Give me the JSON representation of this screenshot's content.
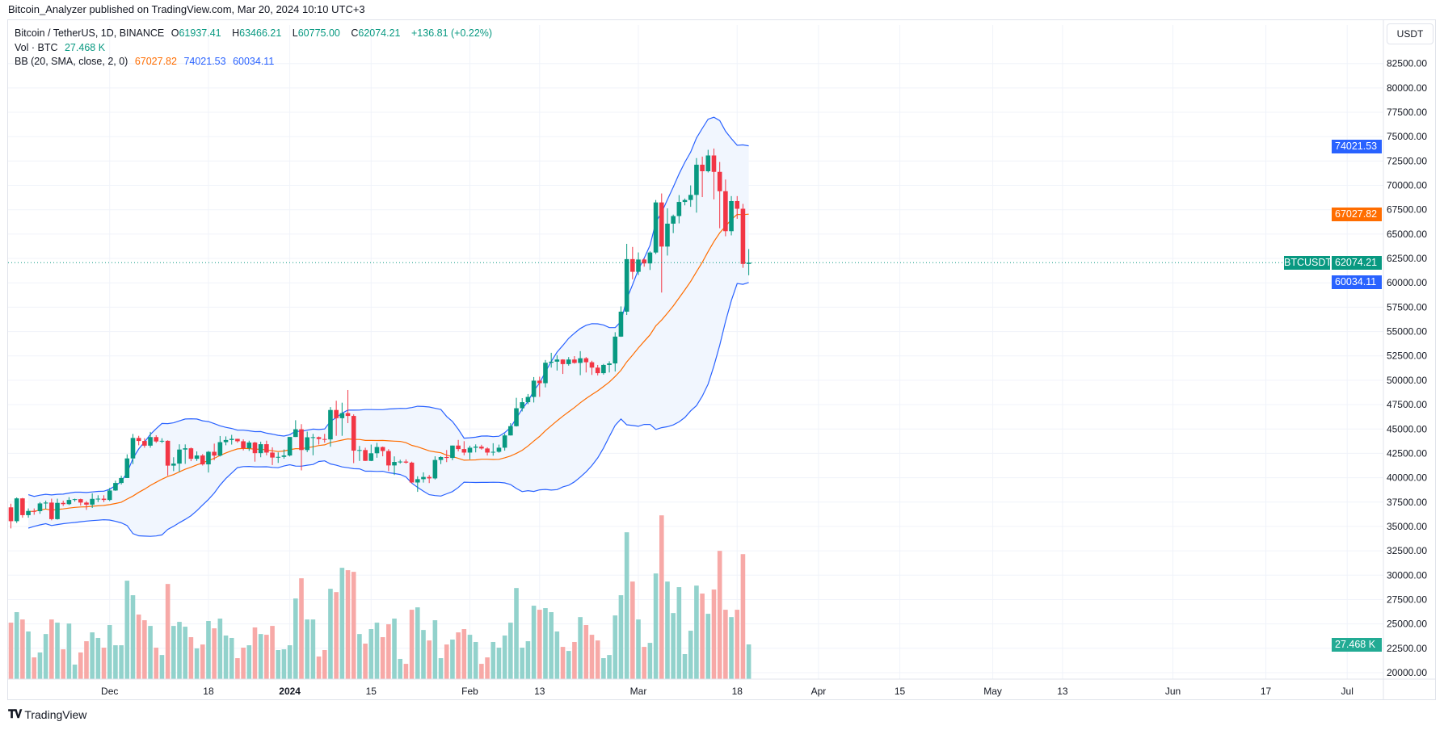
{
  "header": {
    "published": "Bitcoin_Analyzer published on TradingView.com, Mar 20, 2024 10:10 UTC+3"
  },
  "legend": {
    "symbol": "Bitcoin / TetherUS, 1D, BINANCE",
    "o_label": "O",
    "o": "61937.41",
    "h_label": "H",
    "h": "63466.21",
    "l_label": "L",
    "l": "60775.00",
    "c_label": "C",
    "c": "62074.21",
    "change": "+136.81 (+0.22%)",
    "vol_label": "Vol · BTC",
    "vol": "27.468 K",
    "bb_label": "BB (20, SMA, close, 2, 0)",
    "bb_basis": "67027.82",
    "bb_upper": "74021.53",
    "bb_lower": "60034.11"
  },
  "price_axis": {
    "currency_button": "USDT"
  },
  "badges": {
    "upper": {
      "text": "74021.53",
      "value": 74021.53,
      "color": "#2962ff"
    },
    "basis": {
      "text": "67027.82",
      "value": 67027.82,
      "color": "#ff6d00"
    },
    "last": {
      "symbol": "BTCUSDT",
      "text": "62074.21",
      "value": 62074.21,
      "color": "#089981"
    },
    "lower": {
      "text": "60034.11",
      "value": 60034.11,
      "color": "#2962ff"
    },
    "volume": {
      "text": "27.468 K",
      "value": 27.468,
      "color": "#22ab94"
    }
  },
  "footer": {
    "brand": "TradingView"
  },
  "chart_data": {
    "type": "candlestick",
    "title": "Bitcoin / TetherUS, 1D, BINANCE",
    "ylim": [
      20000,
      82500
    ],
    "y_ticks": [
      "82500.00",
      "80000.00",
      "77500.00",
      "75000.00",
      "72500.00",
      "70000.00",
      "67500.00",
      "65000.00",
      "62500.00",
      "60000.00",
      "57500.00",
      "55000.00",
      "52500.00",
      "50000.00",
      "47500.00",
      "45000.00",
      "42500.00",
      "40000.00",
      "37500.00",
      "35000.00",
      "32500.00",
      "30000.00",
      "27500.00",
      "25000.00",
      "22500.00",
      "20000.00"
    ],
    "x_ticks": [
      {
        "label": "Dec",
        "date": "2023-12-01"
      },
      {
        "label": "18",
        "date": "2023-12-18"
      },
      {
        "label": "2024",
        "date": "2024-01-01"
      },
      {
        "label": "15",
        "date": "2024-01-15"
      },
      {
        "label": "Feb",
        "date": "2024-02-01"
      },
      {
        "label": "13",
        "date": "2024-02-13"
      },
      {
        "label": "Mar",
        "date": "2024-03-01"
      },
      {
        "label": "18",
        "date": "2024-03-18"
      },
      {
        "label": "Apr",
        "date": "2024-04-01"
      },
      {
        "label": "15",
        "date": "2024-04-15"
      },
      {
        "label": "May",
        "date": "2024-05-01"
      },
      {
        "label": "13",
        "date": "2024-05-13"
      },
      {
        "label": "Jun",
        "date": "2024-06-01"
      },
      {
        "label": "17",
        "date": "2024-06-17"
      },
      {
        "label": "Jul",
        "date": "2024-07-01"
      }
    ],
    "colors": {
      "up": "#089981",
      "down": "#f23645",
      "vol_up": "#92d2cc",
      "vol_down": "#f7a9a7",
      "bb_basis": "#ff6d00",
      "bb_band": "#2962ff",
      "bb_fill": "#f1f6fe"
    },
    "bollinger": {
      "period": 20,
      "mult": 2
    },
    "volume_unit": "K BTC",
    "columns": [
      "date",
      "open",
      "high",
      "low",
      "close",
      "volume"
    ],
    "candles": [
      [
        "2023-11-14",
        36960,
        37330,
        34800,
        35540,
        44.7
      ],
      [
        "2023-11-15",
        35540,
        37980,
        35360,
        37880,
        53.0
      ],
      [
        "2023-11-16",
        37880,
        37930,
        35900,
        36160,
        47.2
      ],
      [
        "2023-11-17",
        36160,
        36850,
        35900,
        36590,
        37.7
      ],
      [
        "2023-11-18",
        36590,
        36850,
        36200,
        36570,
        17.2
      ],
      [
        "2023-11-19",
        36570,
        37500,
        36300,
        37360,
        21.1
      ],
      [
        "2023-11-20",
        37360,
        37650,
        36800,
        37450,
        35.7
      ],
      [
        "2023-11-21",
        37450,
        37850,
        35630,
        35750,
        47.2
      ],
      [
        "2023-11-22",
        35750,
        37850,
        35700,
        37420,
        44.7
      ],
      [
        "2023-11-23",
        37420,
        37650,
        37100,
        37290,
        23.6
      ],
      [
        "2023-11-24",
        37290,
        38000,
        37200,
        37720,
        44.0
      ],
      [
        "2023-11-25",
        37720,
        37850,
        37550,
        37800,
        11.5
      ],
      [
        "2023-11-26",
        37800,
        37850,
        37150,
        37450,
        21.1
      ],
      [
        "2023-11-27",
        37450,
        37600,
        36700,
        37240,
        30.0
      ],
      [
        "2023-11-28",
        37240,
        38400,
        36900,
        37830,
        37.0
      ],
      [
        "2023-11-29",
        37830,
        38200,
        37500,
        37850,
        32.6
      ],
      [
        "2023-11-30",
        37850,
        38200,
        37500,
        37720,
        24.9
      ],
      [
        "2023-12-01",
        37720,
        38950,
        37600,
        38690,
        42.8
      ],
      [
        "2023-12-02",
        38690,
        39700,
        38650,
        39460,
        26.8
      ],
      [
        "2023-12-03",
        39460,
        40200,
        39300,
        39970,
        26.8
      ],
      [
        "2023-12-04",
        39970,
        42400,
        39970,
        41980,
        77.9
      ],
      [
        "2023-12-05",
        41980,
        44490,
        41400,
        44080,
        66.4
      ],
      [
        "2023-12-06",
        44080,
        44300,
        43330,
        43770,
        51.1
      ],
      [
        "2023-12-07",
        43770,
        44050,
        43080,
        43290,
        46.6
      ],
      [
        "2023-12-08",
        43290,
        44700,
        43080,
        44170,
        42.1
      ],
      [
        "2023-12-09",
        44170,
        44360,
        43580,
        43720,
        24.9
      ],
      [
        "2023-12-10",
        43720,
        44050,
        43560,
        43790,
        19.1
      ],
      [
        "2023-12-11",
        43790,
        43840,
        40220,
        41240,
        75.3
      ],
      [
        "2023-12-12",
        41240,
        42100,
        40680,
        41450,
        42.1
      ],
      [
        "2023-12-13",
        41450,
        43430,
        40600,
        42890,
        45.3
      ],
      [
        "2023-12-14",
        42890,
        43420,
        41420,
        43020,
        41.5
      ],
      [
        "2023-12-15",
        43020,
        43100,
        41700,
        41940,
        33.2
      ],
      [
        "2023-12-16",
        41940,
        42700,
        41720,
        42280,
        24.3
      ],
      [
        "2023-12-17",
        42280,
        42430,
        41250,
        41370,
        27.4
      ],
      [
        "2023-12-18",
        41370,
        42750,
        40530,
        42660,
        46.0
      ],
      [
        "2023-12-19",
        42660,
        43500,
        41800,
        42270,
        40.2
      ],
      [
        "2023-12-20",
        42270,
        44280,
        42180,
        43650,
        47.9
      ],
      [
        "2023-12-21",
        43650,
        44240,
        43330,
        43870,
        34.5
      ],
      [
        "2023-12-22",
        43870,
        44400,
        43400,
        43990,
        32.6
      ],
      [
        "2023-12-23",
        43990,
        44000,
        43590,
        43740,
        16.6
      ],
      [
        "2023-12-24",
        43740,
        43940,
        42800,
        43020,
        24.9
      ],
      [
        "2023-12-25",
        43020,
        43800,
        42750,
        43610,
        26.8
      ],
      [
        "2023-12-26",
        43610,
        43680,
        41650,
        42520,
        40.9
      ],
      [
        "2023-12-27",
        42520,
        43700,
        42100,
        43440,
        35.7
      ],
      [
        "2023-12-28",
        43440,
        43800,
        42300,
        42580,
        35.1
      ],
      [
        "2023-12-29",
        42580,
        43120,
        41300,
        42070,
        42.1
      ],
      [
        "2023-12-30",
        42070,
        42600,
        41520,
        42140,
        23.0
      ],
      [
        "2023-12-31",
        42140,
        42900,
        41950,
        42280,
        23.6
      ],
      [
        "2024-01-01",
        42280,
        44180,
        42180,
        44180,
        26.8
      ],
      [
        "2024-01-02",
        44180,
        45900,
        44180,
        44970,
        63.8
      ],
      [
        "2024-01-03",
        44970,
        45500,
        40750,
        42840,
        79.8
      ],
      [
        "2024-01-04",
        42840,
        44730,
        42630,
        44150,
        47.2
      ],
      [
        "2024-01-05",
        44150,
        44500,
        42300,
        44160,
        47.2
      ],
      [
        "2024-01-06",
        44160,
        44230,
        43400,
        43970,
        17.9
      ],
      [
        "2024-01-07",
        43970,
        44500,
        43600,
        43930,
        23.0
      ],
      [
        "2024-01-08",
        43930,
        47250,
        43180,
        46950,
        71.5
      ],
      [
        "2024-01-09",
        46950,
        47900,
        44300,
        46110,
        68.9
      ],
      [
        "2024-01-10",
        46110,
        47700,
        44300,
        46630,
        88.1
      ],
      [
        "2024-01-11",
        46630,
        49000,
        45600,
        46340,
        86.2
      ],
      [
        "2024-01-12",
        46340,
        46500,
        41500,
        42780,
        84.9
      ],
      [
        "2024-01-13",
        42780,
        43260,
        41720,
        42840,
        35.7
      ],
      [
        "2024-01-14",
        42840,
        43080,
        41720,
        41730,
        28.1
      ],
      [
        "2024-01-15",
        41730,
        43400,
        41700,
        42510,
        39.6
      ],
      [
        "2024-01-16",
        42510,
        43580,
        42050,
        43150,
        44.7
      ],
      [
        "2024-01-17",
        43150,
        43200,
        42200,
        42740,
        33.2
      ],
      [
        "2024-01-18",
        42740,
        42930,
        40680,
        41260,
        43.4
      ],
      [
        "2024-01-19",
        41260,
        42190,
        40280,
        41620,
        47.9
      ],
      [
        "2024-01-20",
        41620,
        41850,
        41450,
        41660,
        16.0
      ],
      [
        "2024-01-21",
        41660,
        41880,
        41450,
        41550,
        12.1
      ],
      [
        "2024-01-22",
        41550,
        41650,
        39430,
        39510,
        54.9
      ],
      [
        "2024-01-23",
        39510,
        40150,
        38550,
        39850,
        56.8
      ],
      [
        "2024-01-24",
        39850,
        40550,
        39500,
        40080,
        38.9
      ],
      [
        "2024-01-25",
        40080,
        40280,
        39450,
        39930,
        30.6
      ],
      [
        "2024-01-26",
        39930,
        42200,
        39820,
        41820,
        46.6
      ],
      [
        "2024-01-27",
        41820,
        42200,
        41400,
        42120,
        16.6
      ],
      [
        "2024-01-28",
        42120,
        42840,
        41600,
        42030,
        27.4
      ],
      [
        "2024-01-29",
        42030,
        43300,
        41800,
        43300,
        31.3
      ],
      [
        "2024-01-30",
        43300,
        43880,
        42700,
        42940,
        37.0
      ],
      [
        "2024-01-31",
        42940,
        43750,
        42300,
        42580,
        39.6
      ],
      [
        "2024-02-01",
        42580,
        43290,
        41880,
        43080,
        35.1
      ],
      [
        "2024-02-02",
        43080,
        43420,
        42600,
        43190,
        29.4
      ],
      [
        "2024-02-03",
        43190,
        43380,
        42880,
        43000,
        12.1
      ],
      [
        "2024-02-04",
        43000,
        43120,
        42280,
        42580,
        17.2
      ],
      [
        "2024-02-05",
        42580,
        43540,
        42260,
        42660,
        29.4
      ],
      [
        "2024-02-06",
        42660,
        43400,
        42570,
        43080,
        24.9
      ],
      [
        "2024-02-07",
        43080,
        44530,
        42780,
        44340,
        34.5
      ],
      [
        "2024-02-08",
        44340,
        45600,
        44330,
        45290,
        44.7
      ],
      [
        "2024-02-09",
        45290,
        48200,
        45250,
        47130,
        72.1
      ],
      [
        "2024-02-10",
        47130,
        48170,
        46800,
        47750,
        24.9
      ],
      [
        "2024-02-11",
        47750,
        48590,
        47540,
        48290,
        30.0
      ],
      [
        "2024-02-12",
        48290,
        50330,
        47720,
        49960,
        58.1
      ],
      [
        "2024-02-13",
        49960,
        50370,
        48300,
        49700,
        54.9
      ],
      [
        "2024-02-14",
        49700,
        52080,
        49270,
        51800,
        56.2
      ],
      [
        "2024-02-15",
        51800,
        52820,
        51300,
        51910,
        53.0
      ],
      [
        "2024-02-16",
        51910,
        52580,
        51000,
        52130,
        37.7
      ],
      [
        "2024-02-17",
        52130,
        52160,
        50650,
        51660,
        25.5
      ],
      [
        "2024-02-18",
        51660,
        52380,
        51500,
        52130,
        22.3
      ],
      [
        "2024-02-19",
        52130,
        52480,
        51700,
        51780,
        29.4
      ],
      [
        "2024-02-20",
        51780,
        52990,
        50520,
        52260,
        49.1
      ],
      [
        "2024-02-21",
        52260,
        52380,
        50800,
        51850,
        42.8
      ],
      [
        "2024-02-22",
        51850,
        52000,
        50550,
        51300,
        35.1
      ],
      [
        "2024-02-23",
        51300,
        51570,
        50500,
        50730,
        30.6
      ],
      [
        "2024-02-24",
        50730,
        51680,
        50580,
        51570,
        16.6
      ],
      [
        "2024-02-25",
        51570,
        51950,
        50800,
        51730,
        19.1
      ],
      [
        "2024-02-26",
        51730,
        54930,
        50900,
        54480,
        50.4
      ],
      [
        "2024-02-27",
        54480,
        57580,
        54450,
        57040,
        66.4
      ],
      [
        "2024-02-28",
        57040,
        64000,
        56700,
        62430,
        116.2
      ],
      [
        "2024-02-29",
        62430,
        63680,
        60360,
        61130,
        77.2
      ],
      [
        "2024-03-01",
        61130,
        63120,
        60800,
        62390,
        47.2
      ],
      [
        "2024-03-02",
        62390,
        62500,
        61660,
        61990,
        25.5
      ],
      [
        "2024-03-03",
        61990,
        63230,
        61320,
        63110,
        28.7
      ],
      [
        "2024-03-04",
        63110,
        68500,
        62950,
        68250,
        83.6
      ],
      [
        "2024-03-05",
        68250,
        69170,
        59000,
        63720,
        129.6
      ],
      [
        "2024-03-06",
        63720,
        67640,
        62800,
        66070,
        77.2
      ],
      [
        "2024-03-07",
        66070,
        67000,
        65100,
        66850,
        52.3
      ],
      [
        "2024-03-08",
        66850,
        69000,
        66100,
        68300,
        72.8
      ],
      [
        "2024-03-09",
        68300,
        68650,
        67950,
        68500,
        19.8
      ],
      [
        "2024-03-10",
        68500,
        70000,
        67800,
        69020,
        38.3
      ],
      [
        "2024-03-11",
        69020,
        72800,
        67200,
        72120,
        74.0
      ],
      [
        "2024-03-12",
        72120,
        72950,
        68800,
        71450,
        67.7
      ],
      [
        "2024-03-13",
        71450,
        73650,
        71330,
        73070,
        51.7
      ],
      [
        "2024-03-14",
        73070,
        73780,
        68560,
        71390,
        70.9
      ],
      [
        "2024-03-15",
        71390,
        72400,
        65600,
        69400,
        101.5
      ],
      [
        "2024-03-16",
        69400,
        70600,
        64780,
        65300,
        54.9
      ],
      [
        "2024-03-17",
        65300,
        68900,
        64870,
        68390,
        49.1
      ],
      [
        "2024-03-18",
        68390,
        68900,
        66570,
        67600,
        54.9
      ],
      [
        "2024-03-19",
        67600,
        68100,
        61540,
        61940,
        98.9
      ],
      [
        "2024-03-20",
        61937.41,
        63466.21,
        60775.0,
        62074.21,
        27.468
      ]
    ]
  }
}
